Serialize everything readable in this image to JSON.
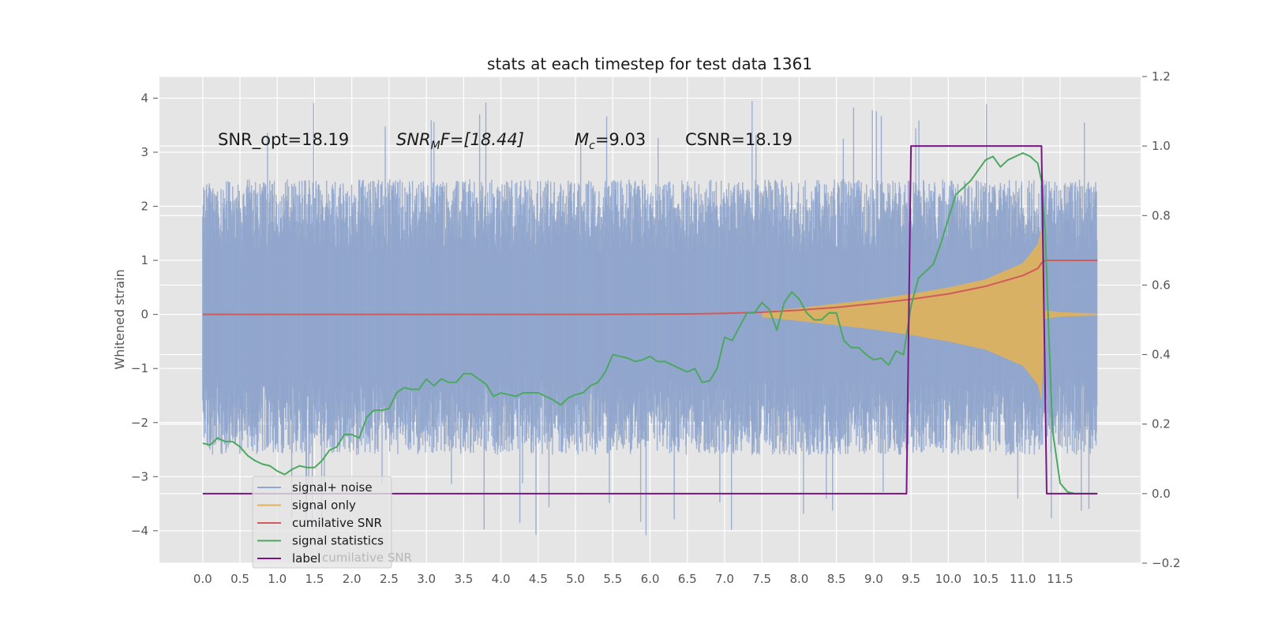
{
  "chart_data": {
    "type": "line",
    "title": "stats at each timestep for test data 1361",
    "xlabel": "",
    "ylabel": "Whitened strain",
    "ylabel_right": "",
    "xlim": [
      -0.58,
      12.58
    ],
    "ylim": [
      -4.6,
      4.4
    ],
    "ylim_right": [
      -0.2,
      1.2
    ],
    "x_ticks": [
      "0.0",
      "0.5",
      "1.0",
      "1.5",
      "2.0",
      "2.5",
      "3.0",
      "3.5",
      "4.0",
      "4.5",
      "5.0",
      "5.5",
      "6.0",
      "6.5",
      "7.0",
      "7.5",
      "8.0",
      "8.5",
      "9.0",
      "9.5",
      "10.0",
      "10.5",
      "11.0",
      "11.5"
    ],
    "y_ticks": [
      "4",
      "3",
      "2",
      "1",
      "0",
      "−1",
      "−2",
      "−3",
      "−4"
    ],
    "y_ticks_right": [
      "1.2",
      "1.0",
      "0.8",
      "0.6",
      "0.4",
      "0.2",
      "0.0",
      "−0.2"
    ],
    "grid": true,
    "legend_position": "lower-left",
    "annotations": [
      {
        "text": "SNR_opt=18.19"
      },
      {
        "prefix": "SNR",
        "sub": "M",
        "suffix": "F=[18.44]"
      },
      {
        "prefix": "M",
        "sub": "c",
        "suffix": "=9.03"
      },
      {
        "text": "CSNR=18.19"
      }
    ],
    "ghost_legend_text": "cumilative SNR",
    "series": [
      {
        "name": "signal+ noise",
        "color": "#91a6cc",
        "axis": "left",
        "noise_envelope": {
          "x": [
            0,
            12
          ],
          "typical_max": 2.5,
          "typical_min": -2.6,
          "peak_max": 4.0,
          "peak_min": -4.1
        }
      },
      {
        "name": "signal only",
        "color": "#e0b25a",
        "axis": "left",
        "envelope": {
          "x": [
            7.5,
            8.0,
            8.5,
            9.0,
            9.5,
            10.0,
            10.5,
            11.0,
            11.2,
            11.25,
            11.3,
            11.5,
            12.0
          ],
          "amplitude": [
            0.05,
            0.12,
            0.2,
            0.28,
            0.38,
            0.5,
            0.65,
            0.95,
            1.3,
            1.6,
            0.08,
            0.04,
            0.02
          ]
        }
      },
      {
        "name": "cumilative SNR",
        "color": "#d15a5a",
        "axis": "left",
        "x": [
          0,
          1,
          2,
          3,
          4,
          5,
          6,
          6.5,
          7,
          7.5,
          8,
          8.5,
          9,
          9.5,
          10,
          10.5,
          11,
          11.2,
          11.25,
          11.3,
          12.0
        ],
        "y": [
          0,
          0,
          0,
          0,
          0,
          0,
          0.005,
          0.01,
          0.02,
          0.04,
          0.08,
          0.13,
          0.2,
          0.28,
          0.38,
          0.52,
          0.72,
          0.85,
          0.95,
          1.0,
          1.0
        ]
      },
      {
        "name": "signal statistics",
        "color": "#4ca861",
        "axis": "right",
        "x": [
          0,
          0.1,
          0.2,
          0.3,
          0.4,
          0.5,
          0.6,
          0.7,
          0.8,
          0.9,
          1.0,
          1.1,
          1.2,
          1.3,
          1.4,
          1.5,
          1.6,
          1.7,
          1.8,
          1.9,
          2.0,
          2.1,
          2.2,
          2.3,
          2.4,
          2.5,
          2.6,
          2.7,
          2.8,
          2.9,
          3.0,
          3.1,
          3.2,
          3.3,
          3.4,
          3.5,
          3.6,
          3.7,
          3.8,
          3.9,
          4.0,
          4.1,
          4.2,
          4.3,
          4.4,
          4.5,
          4.6,
          4.7,
          4.8,
          4.9,
          5.0,
          5.1,
          5.2,
          5.3,
          5.4,
          5.5,
          5.6,
          5.7,
          5.8,
          5.9,
          6.0,
          6.1,
          6.2,
          6.3,
          6.4,
          6.5,
          6.6,
          6.7,
          6.8,
          6.9,
          7.0,
          7.1,
          7.2,
          7.3,
          7.4,
          7.5,
          7.6,
          7.7,
          7.8,
          7.9,
          8.0,
          8.1,
          8.2,
          8.3,
          8.4,
          8.5,
          8.6,
          8.7,
          8.8,
          8.9,
          9.0,
          9.1,
          9.2,
          9.3,
          9.4,
          9.5,
          9.6,
          9.7,
          9.8,
          9.9,
          10.0,
          10.1,
          10.2,
          10.3,
          10.4,
          10.5,
          10.6,
          10.7,
          10.8,
          10.9,
          11.0,
          11.1,
          11.2,
          11.25,
          11.3,
          11.35,
          11.4,
          11.5,
          11.6,
          11.7,
          11.8,
          11.9,
          12.0
        ],
        "y": [
          0.145,
          0.14,
          0.16,
          0.15,
          0.15,
          0.135,
          0.11,
          0.095,
          0.085,
          0.08,
          0.065,
          0.055,
          0.07,
          0.08,
          0.075,
          0.075,
          0.095,
          0.125,
          0.135,
          0.17,
          0.17,
          0.16,
          0.22,
          0.24,
          0.24,
          0.245,
          0.29,
          0.305,
          0.3,
          0.3,
          0.33,
          0.31,
          0.33,
          0.32,
          0.32,
          0.345,
          0.345,
          0.33,
          0.315,
          0.28,
          0.29,
          0.285,
          0.28,
          0.29,
          0.29,
          0.29,
          0.28,
          0.27,
          0.255,
          0.275,
          0.285,
          0.29,
          0.31,
          0.32,
          0.35,
          0.4,
          0.395,
          0.39,
          0.38,
          0.385,
          0.395,
          0.38,
          0.38,
          0.37,
          0.36,
          0.35,
          0.36,
          0.32,
          0.325,
          0.36,
          0.45,
          0.44,
          0.48,
          0.52,
          0.52,
          0.55,
          0.53,
          0.47,
          0.55,
          0.58,
          0.56,
          0.52,
          0.5,
          0.5,
          0.52,
          0.52,
          0.44,
          0.42,
          0.42,
          0.4,
          0.385,
          0.39,
          0.37,
          0.41,
          0.4,
          0.54,
          0.62,
          0.64,
          0.66,
          0.72,
          0.79,
          0.86,
          0.88,
          0.9,
          0.93,
          0.96,
          0.97,
          0.94,
          0.96,
          0.97,
          0.98,
          0.97,
          0.95,
          0.9,
          0.75,
          0.45,
          0.18,
          0.03,
          0.005,
          0.0,
          0.0,
          0.0,
          0.0
        ]
      },
      {
        "name": "label",
        "color": "#7a1683",
        "axis": "right",
        "x": [
          0,
          9.44,
          9.5,
          11.25,
          11.32,
          12.0
        ],
        "y": [
          0,
          0,
          1,
          1,
          0,
          0
        ]
      }
    ]
  }
}
